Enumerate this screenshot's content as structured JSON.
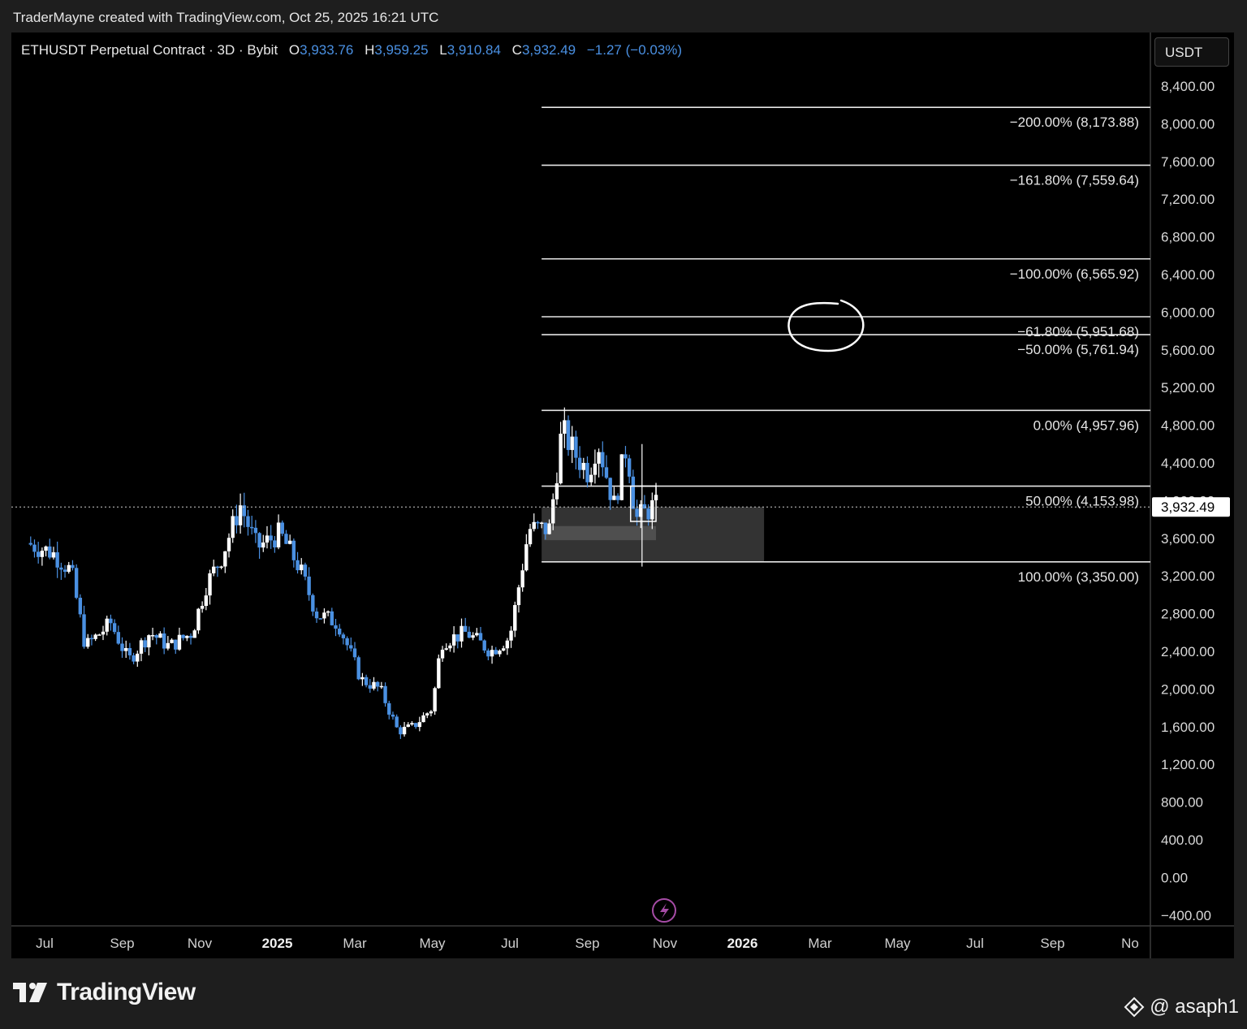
{
  "header": {
    "credit": "TraderMayne created with TradingView.com, Oct 25, 2025 16:21 UTC"
  },
  "legend": {
    "symbol": "ETHUSDT Perpetual Contract · 3D · Bybit",
    "open_key": "O",
    "open": "3,933.76",
    "high_key": "H",
    "high": "3,959.25",
    "low_key": "L",
    "low": "3,910.84",
    "close_key": "C",
    "close": "3,932.49",
    "change": "−1.27 (−0.03%)"
  },
  "price_axis": {
    "currency": "USDT",
    "ticks": [
      "8,400.00",
      "8,000.00",
      "7,600.00",
      "7,200.00",
      "6,800.00",
      "6,400.00",
      "6,000.00",
      "5,600.00",
      "5,200.00",
      "4,800.00",
      "4,400.00",
      "4,000.00",
      "3,600.00",
      "3,200.00",
      "2,800.00",
      "2,400.00",
      "2,000.00",
      "1,600.00",
      "1,200.00",
      "800.00",
      "400.00",
      "0.00",
      "−400.00"
    ],
    "current_price_label": "3,932.49"
  },
  "time_axis": {
    "labels": [
      {
        "text": "Jul",
        "bold": false
      },
      {
        "text": "Sep",
        "bold": false
      },
      {
        "text": "Nov",
        "bold": false
      },
      {
        "text": "2025",
        "bold": true
      },
      {
        "text": "Mar",
        "bold": false
      },
      {
        "text": "May",
        "bold": false
      },
      {
        "text": "Jul",
        "bold": false
      },
      {
        "text": "Sep",
        "bold": false
      },
      {
        "text": "Nov",
        "bold": false
      },
      {
        "text": "2026",
        "bold": true
      },
      {
        "text": "Mar",
        "bold": false
      },
      {
        "text": "May",
        "bold": false
      },
      {
        "text": "Jul",
        "bold": false
      },
      {
        "text": "Sep",
        "bold": false
      },
      {
        "text": "No",
        "bold": false
      }
    ]
  },
  "colors": {
    "background": "#000000",
    "up_candle": "#ffffff",
    "down_candle": "#4a90e2",
    "fib_line": "#e6e6e6",
    "zone": "#333333",
    "accent": "#4a90e2"
  },
  "footer": {
    "brand": "TradingView",
    "watermark": "@ asaph1"
  },
  "chart_data": {
    "type": "candlestick",
    "symbol": "ETHUSDT",
    "interval": "3D",
    "exchange": "Bybit",
    "y_range": [
      -400,
      8600
    ],
    "x_range": [
      "2024-06-20",
      "2026-11-05"
    ],
    "price_path": [
      [
        "2024-06-20",
        3550
      ],
      [
        "2024-07-10",
        3450
      ],
      [
        "2024-07-25",
        3250
      ],
      [
        "2024-08-05",
        2450
      ],
      [
        "2024-08-25",
        2700
      ],
      [
        "2024-09-08",
        2300
      ],
      [
        "2024-09-25",
        2600
      ],
      [
        "2024-10-10",
        2450
      ],
      [
        "2024-10-28",
        2600
      ],
      [
        "2024-11-08",
        3100
      ],
      [
        "2024-11-20",
        3400
      ],
      [
        "2024-12-05",
        3950
      ],
      [
        "2024-12-18",
        3500
      ],
      [
        "2025-01-05",
        3650
      ],
      [
        "2025-01-20",
        3300
      ],
      [
        "2025-02-03",
        2800
      ],
      [
        "2025-02-20",
        2700
      ],
      [
        "2025-03-10",
        2100
      ],
      [
        "2025-03-25",
        2000
      ],
      [
        "2025-04-08",
        1550
      ],
      [
        "2025-04-20",
        1600
      ],
      [
        "2025-05-05",
        1800
      ],
      [
        "2025-05-12",
        2500
      ],
      [
        "2025-06-01",
        2600
      ],
      [
        "2025-06-20",
        2400
      ],
      [
        "2025-07-05",
        2550
      ],
      [
        "2025-07-20",
        3700
      ],
      [
        "2025-08-05",
        3700
      ],
      [
        "2025-08-15",
        4750
      ],
      [
        "2025-08-25",
        4500
      ],
      [
        "2025-09-05",
        4300
      ],
      [
        "2025-09-12",
        4650
      ],
      [
        "2025-09-25",
        3950
      ],
      [
        "2025-10-05",
        4600
      ],
      [
        "2025-10-12",
        3800
      ],
      [
        "2025-10-25",
        3932.49
      ]
    ],
    "ohlc_last": {
      "open": 3933.76,
      "high": 3959.25,
      "low": 3910.84,
      "close": 3932.49,
      "change": -1.27,
      "change_pct": -0.03
    },
    "fibonacci": {
      "start_date": "2025-07-27",
      "end_date": "2026-10-30",
      "levels": [
        {
          "label": "−200.00% (8,173.88)",
          "price": 8173.88
        },
        {
          "label": "−161.80% (7,559.64)",
          "price": 7559.64
        },
        {
          "label": "−100.00% (6,565.92)",
          "price": 6565.92
        },
        {
          "label": "−61.80% (5,951.68)",
          "price": 5951.68
        },
        {
          "label": "−50.00% (5,761.94)",
          "price": 5761.94
        },
        {
          "label": "0.00% (4,957.96)",
          "price": 4957.96
        },
        {
          "label": "50.00% (4,153.98)",
          "price": 4153.98
        },
        {
          "label": "100.00% (3,350.00)",
          "price": 3350.0
        }
      ]
    },
    "zones": [
      {
        "from": "2025-07-27",
        "to": "2026-01-18",
        "top": 3932.49,
        "bottom": 3350
      },
      {
        "from": "2025-07-29",
        "to": "2025-10-25",
        "top": 3730,
        "bottom": 3580
      }
    ],
    "annotations": [
      {
        "type": "circle",
        "date": "2026-01-01",
        "price": 5850
      },
      {
        "type": "rectangle",
        "from": "2025-10-05",
        "to": "2025-10-25",
        "top": 4153.98,
        "bottom": 3900
      },
      {
        "type": "vline",
        "date": "2025-10-14",
        "from": 4600,
        "to": 3300
      }
    ]
  }
}
